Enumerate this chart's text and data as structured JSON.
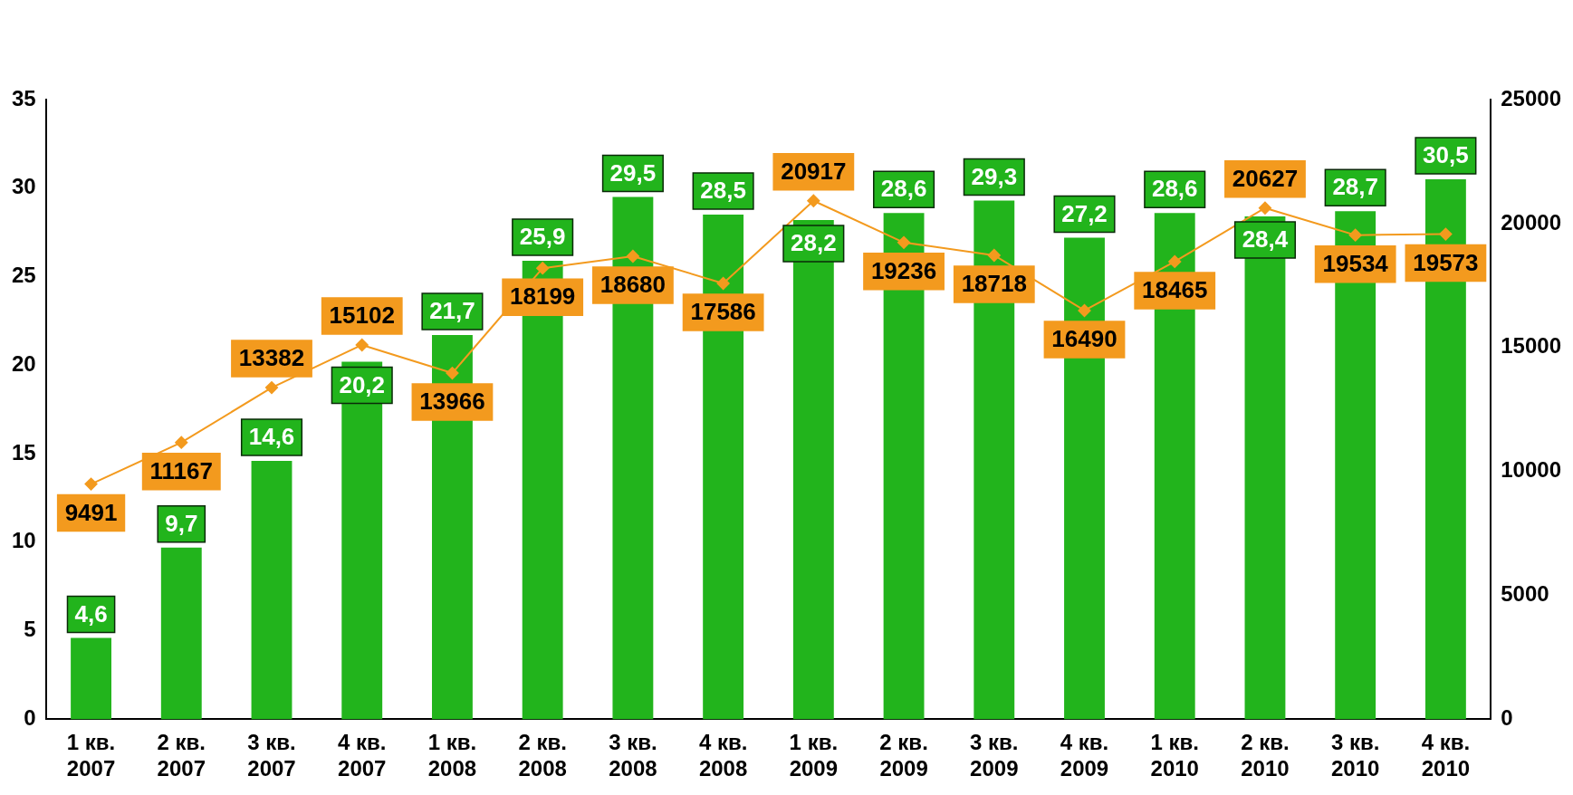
{
  "chart_data": {
    "type": "bar",
    "categories": [
      "1 кв.\n2007",
      "2 кв.\n2007",
      "3 кв.\n2007",
      "4 кв.\n2007",
      "1 кв.\n2008",
      "2 кв.\n2008",
      "3 кв.\n2008",
      "4 кв.\n2008",
      "1 кв.\n2009",
      "2 кв.\n2009",
      "3 кв.\n2009",
      "4 кв.\n2009",
      "1 кв.\n2010",
      "2 кв.\n2010",
      "3 кв.\n2010",
      "4 кв.\n2010"
    ],
    "series": [
      {
        "color": "#22b41c",
        "values": [
          4.6,
          9.7,
          14.6,
          20.2,
          21.7,
          25.9,
          29.5,
          28.5,
          28.2,
          28.6,
          29.3,
          27.2,
          28.6,
          28.4,
          28.7,
          30.5
        ],
        "value_labels": [
          "4,6",
          "9,7",
          "14,6",
          "20,2",
          "21,7",
          "25,9",
          "29,5",
          "28,5",
          "28,2",
          "28,6",
          "29,3",
          "27,2",
          "28,6",
          "28,4",
          "28,7",
          "30,5"
        ]
      },
      {
        "type": "line",
        "axis": "y2",
        "color": "#f39a1e",
        "marker": "diamond",
        "values": [
          9491,
          11167,
          13382,
          15102,
          13966,
          18199,
          18680,
          17586,
          20917,
          19236,
          18718,
          16490,
          18465,
          20627,
          19534,
          19573
        ],
        "value_labels": [
          "9491",
          "11167",
          "13382",
          "15102",
          "13966",
          "18199",
          "18680",
          "17586",
          "20917",
          "19236",
          "18718",
          "16490",
          "18465",
          "20627",
          "19534",
          "19573"
        ]
      }
    ],
    "ylim": [
      0,
      35
    ],
    "yticks": [
      0,
      5,
      10,
      15,
      20,
      25,
      30,
      35
    ],
    "y2lim": [
      0,
      25000
    ],
    "y2ticks": [
      0,
      5000,
      10000,
      15000,
      20000,
      25000
    ],
    "grid": false,
    "legend": false
  }
}
